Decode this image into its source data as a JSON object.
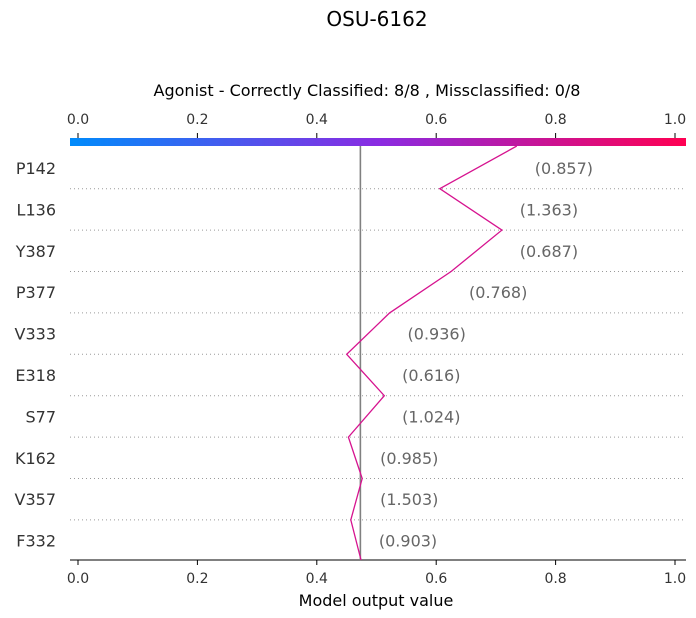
{
  "chart_data": {
    "type": "line",
    "title": "OSU-6162",
    "subtitle": "Agonist - Correctly Classified: 8/8 , Missclassified: 0/8",
    "xlabel": "Model output value",
    "xlim": [
      0.0,
      1.0
    ],
    "xticks": [
      "0.0",
      "0.2",
      "0.4",
      "0.6",
      "0.8",
      "1.0"
    ],
    "base_value": 0.473,
    "grid": false,
    "colormap": [
      "#008bfb",
      "#8a2be2",
      "#ff0052"
    ],
    "features": [
      {
        "name": "P142",
        "value_label": "(0.857)",
        "x": 0.606
      },
      {
        "name": "L136",
        "value_label": "(1.363)",
        "x": 0.71
      },
      {
        "name": "Y387",
        "value_label": "(0.687)",
        "x": 0.625
      },
      {
        "name": "P377",
        "value_label": "(0.768)",
        "x": 0.522
      },
      {
        "name": "V333",
        "value_label": "(0.936)",
        "x": 0.45
      },
      {
        "name": "E318",
        "value_label": "(0.616)",
        "x": 0.513
      },
      {
        "name": "S77",
        "value_label": "(1.024)",
        "x": 0.453
      },
      {
        "name": "K162",
        "value_label": "(0.985)",
        "x": 0.476
      },
      {
        "name": "V357",
        "value_label": "(1.503)",
        "x": 0.457
      },
      {
        "name": "F332",
        "value_label": "(0.903)",
        "x": 0.474
      }
    ],
    "top_x": 0.735,
    "line_color": "#d6138f",
    "base_line_color": "#808080"
  }
}
